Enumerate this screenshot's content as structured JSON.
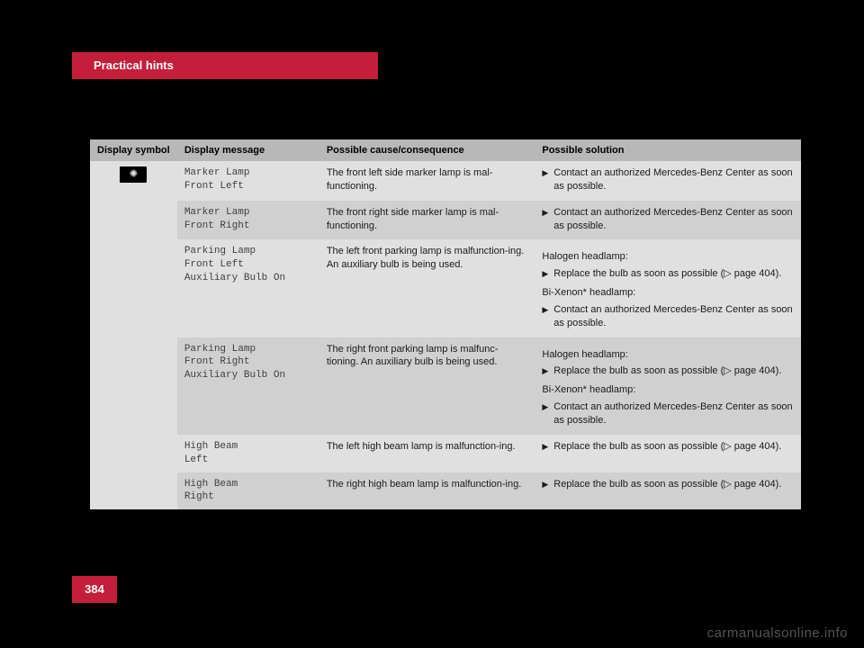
{
  "header": {
    "title": "Practical hints"
  },
  "page_number": "384",
  "watermark": "carmanualsonline.info",
  "columns": {
    "symbol": "Display symbol",
    "message": "Display message",
    "cause": "Possible cause/consequence",
    "solution": "Possible solution"
  },
  "page_ref": "(▷ page 404).",
  "labels": {
    "halogen": "Halogen headlamp:",
    "bixenon": "Bi-Xenon* headlamp:"
  },
  "solutions": {
    "contact": "Contact an authorized Mercedes-Benz Center as soon as possible.",
    "replace": "Replace the bulb as soon as possible"
  },
  "rows": [
    {
      "msg": "Marker Lamp\nFront Left",
      "cause": "The front left side marker lamp is mal-functioning.",
      "type": "contact"
    },
    {
      "msg": "Marker Lamp\nFront Right",
      "cause": "The front right side marker lamp is mal-functioning.",
      "type": "contact"
    },
    {
      "msg": "Parking Lamp\nFront Left\nAuxiliary Bulb On",
      "cause": "The left front parking lamp is malfunction-ing. An auxiliary bulb is being used.",
      "type": "dual"
    },
    {
      "msg": "Parking Lamp\nFront Right\nAuxiliary Bulb On",
      "cause": "The right front parking lamp is malfunc-tioning. An auxiliary bulb is being used.",
      "type": "dual"
    },
    {
      "msg": "High Beam\nLeft",
      "cause": "The left high beam lamp is malfunction-ing.",
      "type": "replace"
    },
    {
      "msg": "High Beam\nRight",
      "cause": "The right high beam lamp is malfunction-ing.",
      "type": "replace"
    }
  ]
}
